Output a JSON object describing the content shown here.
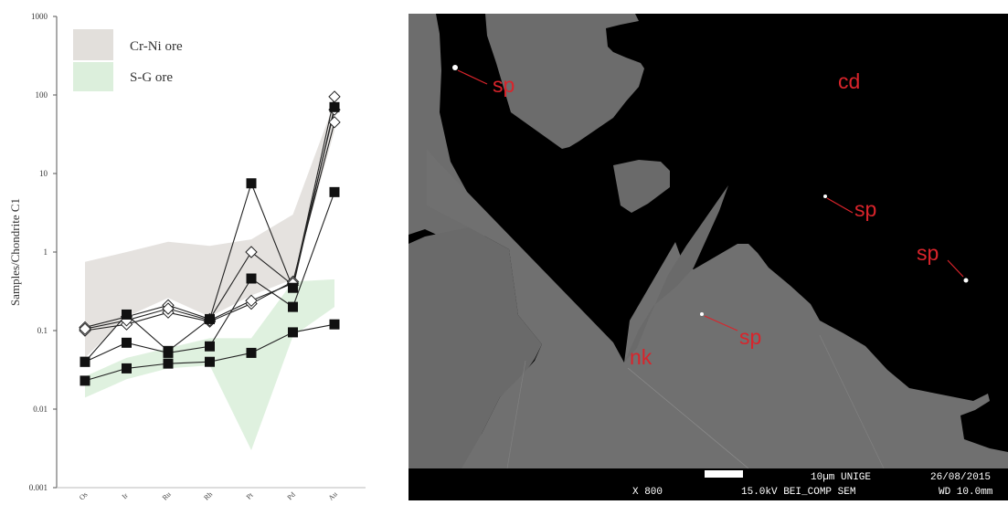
{
  "chart_data": {
    "type": "line",
    "title": "",
    "ylabel": "Samples/Chondrite C1",
    "xlabel": "",
    "y_scale": "log",
    "ylim": [
      0.001,
      1000
    ],
    "y_ticks": [
      "0.001",
      "0.01",
      "0.1",
      "1",
      "10",
      "100",
      "1000"
    ],
    "categories": [
      "Os",
      "Ir",
      "Ru",
      "Rh",
      "Pt",
      "Pd",
      "Au"
    ],
    "legend": {
      "placement": "top-left",
      "entries": [
        {
          "label": "Cr-Ni ore",
          "color": "#e2dfdb"
        },
        {
          "label": "S-G ore",
          "color": "#dcefdc"
        }
      ]
    },
    "fields": [
      {
        "name": "Cr-Ni ore",
        "upper": [
          0.75,
          1.0,
          1.35,
          1.2,
          1.45,
          3.0,
          80
        ],
        "lower": [
          0.045,
          0.15,
          0.26,
          0.15,
          0.28,
          0.45,
          35
        ]
      },
      {
        "name": "S-G ore",
        "upper": [
          0.026,
          0.045,
          0.06,
          0.08,
          0.08,
          0.42,
          0.45
        ],
        "lower": [
          0.014,
          0.024,
          0.033,
          0.036,
          0.003,
          0.085,
          0.2
        ]
      }
    ],
    "series": [
      {
        "marker": "diamond",
        "values": [
          0.11,
          0.15,
          0.21,
          0.14,
          1.0,
          0.38,
          95
        ]
      },
      {
        "marker": "diamond",
        "values": [
          0.1,
          0.12,
          0.17,
          0.13,
          0.22,
          0.42,
          45
        ]
      },
      {
        "marker": "diamond",
        "values": [
          0.105,
          0.135,
          0.19,
          0.135,
          0.24,
          0.4,
          65
        ]
      },
      {
        "marker": "square",
        "values": [
          0.04,
          0.16,
          0.055,
          0.14,
          7.5,
          0.35,
          70
        ]
      },
      {
        "marker": "square",
        "values": [
          0.04,
          0.07,
          0.052,
          0.063,
          0.46,
          0.2,
          5.8
        ]
      },
      {
        "marker": "square",
        "values": [
          0.023,
          0.033,
          0.038,
          0.04,
          0.052,
          0.095,
          0.12
        ]
      }
    ]
  },
  "sem_image": {
    "labels": [
      "sp",
      "cd",
      "sp",
      "sp",
      "sp",
      "nk"
    ],
    "magnification": "X 800",
    "scale_text": "10µm  UNIGE",
    "date": "26/08/2015",
    "beam_text": "15.0kV BEI_COMP SEM",
    "working_distance": "WD 10.0mm",
    "label_color": "#d9242b"
  }
}
